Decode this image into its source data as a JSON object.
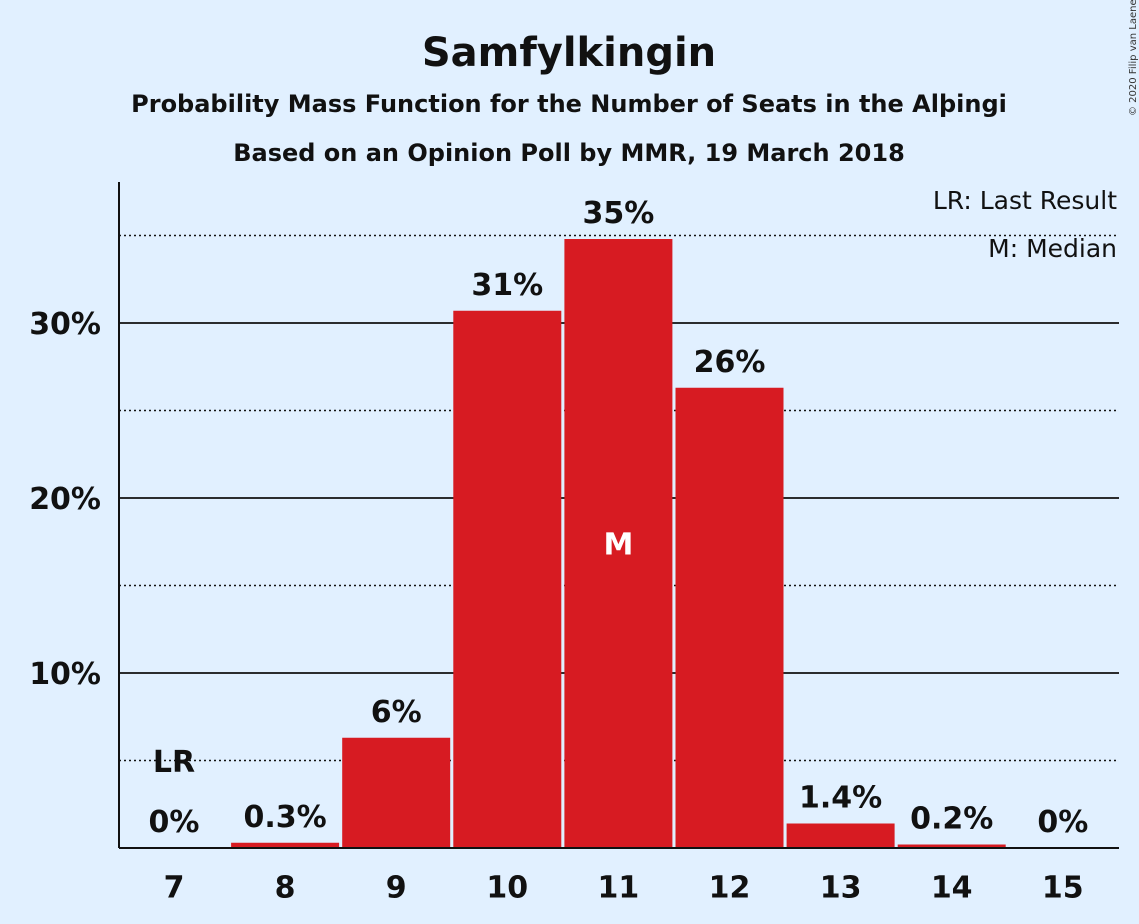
{
  "copyright": "© 2020 Filip van Laenen",
  "colors": {
    "bar": "#d71b22",
    "background": "#e1f0ff",
    "median_text": "#ffffff"
  },
  "chart_data": {
    "type": "bar",
    "title": "Samfylkingin",
    "subtitle": "Probability Mass Function for the Number of Seats in the Alþingi",
    "subtitle2": "Based on an Opinion Poll by MMR, 19 March 2018",
    "categories": [
      "7",
      "8",
      "9",
      "10",
      "11",
      "12",
      "13",
      "14",
      "15"
    ],
    "values": [
      0,
      0.3,
      6.3,
      30.7,
      34.8,
      26.3,
      1.4,
      0.2,
      0
    ],
    "data_labels": [
      "0%",
      "0.3%",
      "6%",
      "31%",
      "35%",
      "26%",
      "1.4%",
      "0.2%",
      "0%"
    ],
    "ylim": [
      0,
      38
    ],
    "yticks": [
      10,
      20,
      30
    ],
    "ytick_labels": [
      "10%",
      "20%",
      "30%"
    ],
    "minor_gridlines": [
      5,
      15,
      25,
      35
    ],
    "last_result": {
      "category": "7",
      "label": "LR"
    },
    "median": {
      "category": "11",
      "label": "M"
    },
    "legend": [
      "LR: Last Result",
      "M: Median"
    ],
    "legend_position": "top-right",
    "xlabel": "",
    "ylabel": ""
  }
}
